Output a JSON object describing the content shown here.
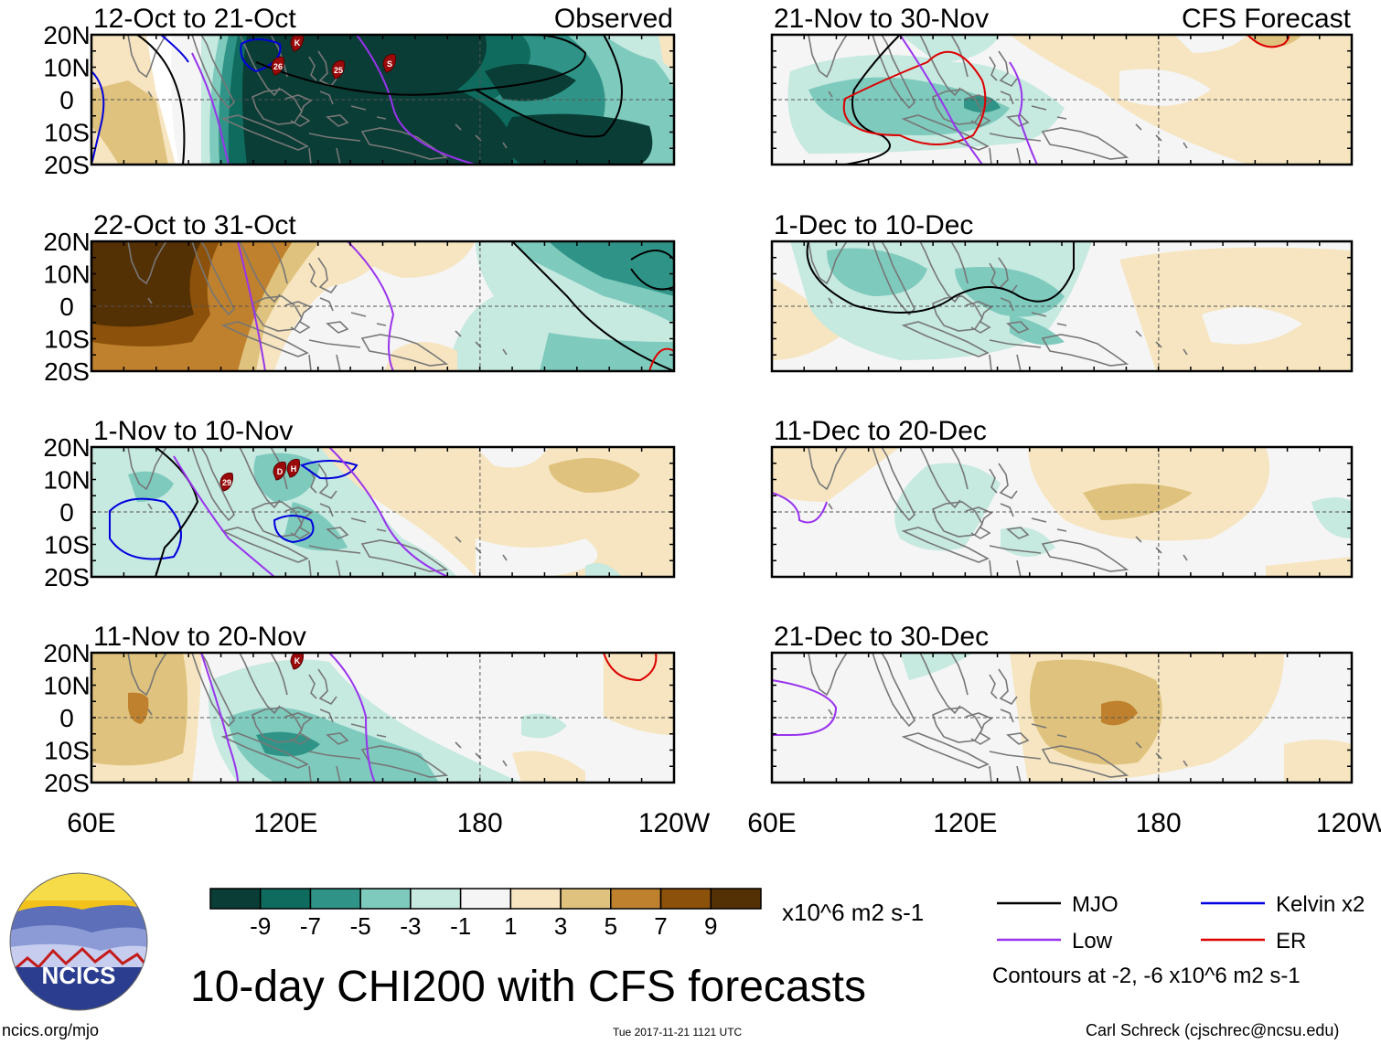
{
  "title": "10-day CHI200 with CFS forecasts",
  "units": "x10^6 m2 s-1",
  "footer": {
    "url": "ncics.org/mjo",
    "timestamp": "Tue 2017-11-21 1121 UTC",
    "author": "Carl Schreck (cjschrec@ncsu.edu)"
  },
  "logo_text": "NCICS",
  "panel_tags": {
    "observed": "Observed",
    "forecast": "CFS Forecast"
  },
  "lat_labels": [
    "20N",
    "10N",
    "0",
    "10S",
    "20S"
  ],
  "lon_labels": [
    "60E",
    "120E",
    "180",
    "120W"
  ],
  "colorbar": {
    "colors": [
      "#0a3d35",
      "#0f6b5e",
      "#2f9487",
      "#7ecabd",
      "#c6e9e0",
      "#f5f5f5",
      "#f6e5c0",
      "#dfc27d",
      "#bf812d",
      "#8c510a",
      "#543005"
    ],
    "labels": [
      "-9",
      "-7",
      "-5",
      "-3",
      "-1",
      "1",
      "3",
      "5",
      "7",
      "9"
    ]
  },
  "legend": {
    "items": [
      {
        "label": "MJO",
        "color": "#000000"
      },
      {
        "label": "Kelvin x2",
        "color": "#0000dd"
      },
      {
        "label": "Low",
        "color": "#9933ee"
      },
      {
        "label": "ER",
        "color": "#dd0000"
      }
    ],
    "note": "Contours at -2, -6 x10^6 m2 s-1"
  },
  "panels": [
    {
      "period": "12-Oct to 21-Oct",
      "tag": "Observed",
      "storms": [
        "K",
        "26",
        "25",
        "S"
      ]
    },
    {
      "period": "22-Oct to 31-Oct",
      "storms": []
    },
    {
      "period": "1-Nov to 10-Nov",
      "storms": [
        "29",
        "D",
        "H"
      ]
    },
    {
      "period": "11-Nov to 20-Nov",
      "storms": [
        "K"
      ]
    },
    {
      "period": "21-Nov to 30-Nov",
      "tag": "CFS Forecast",
      "storms": []
    },
    {
      "period": "1-Dec to 10-Dec",
      "storms": []
    },
    {
      "period": "11-Dec to 20-Dec",
      "storms": []
    },
    {
      "period": "21-Dec to 30-Dec",
      "storms": []
    }
  ],
  "map_data": {
    "type": "multi-panel anomaly map",
    "field": "200-hPa velocity potential anomaly (CHI200)",
    "region": {
      "lon_range": [
        "60E",
        "120W"
      ],
      "lat_range": [
        "20S",
        "20N"
      ]
    },
    "contour_levels": [
      -9,
      -7,
      -5,
      -3,
      -1,
      1,
      3,
      5,
      7,
      9
    ]
  }
}
